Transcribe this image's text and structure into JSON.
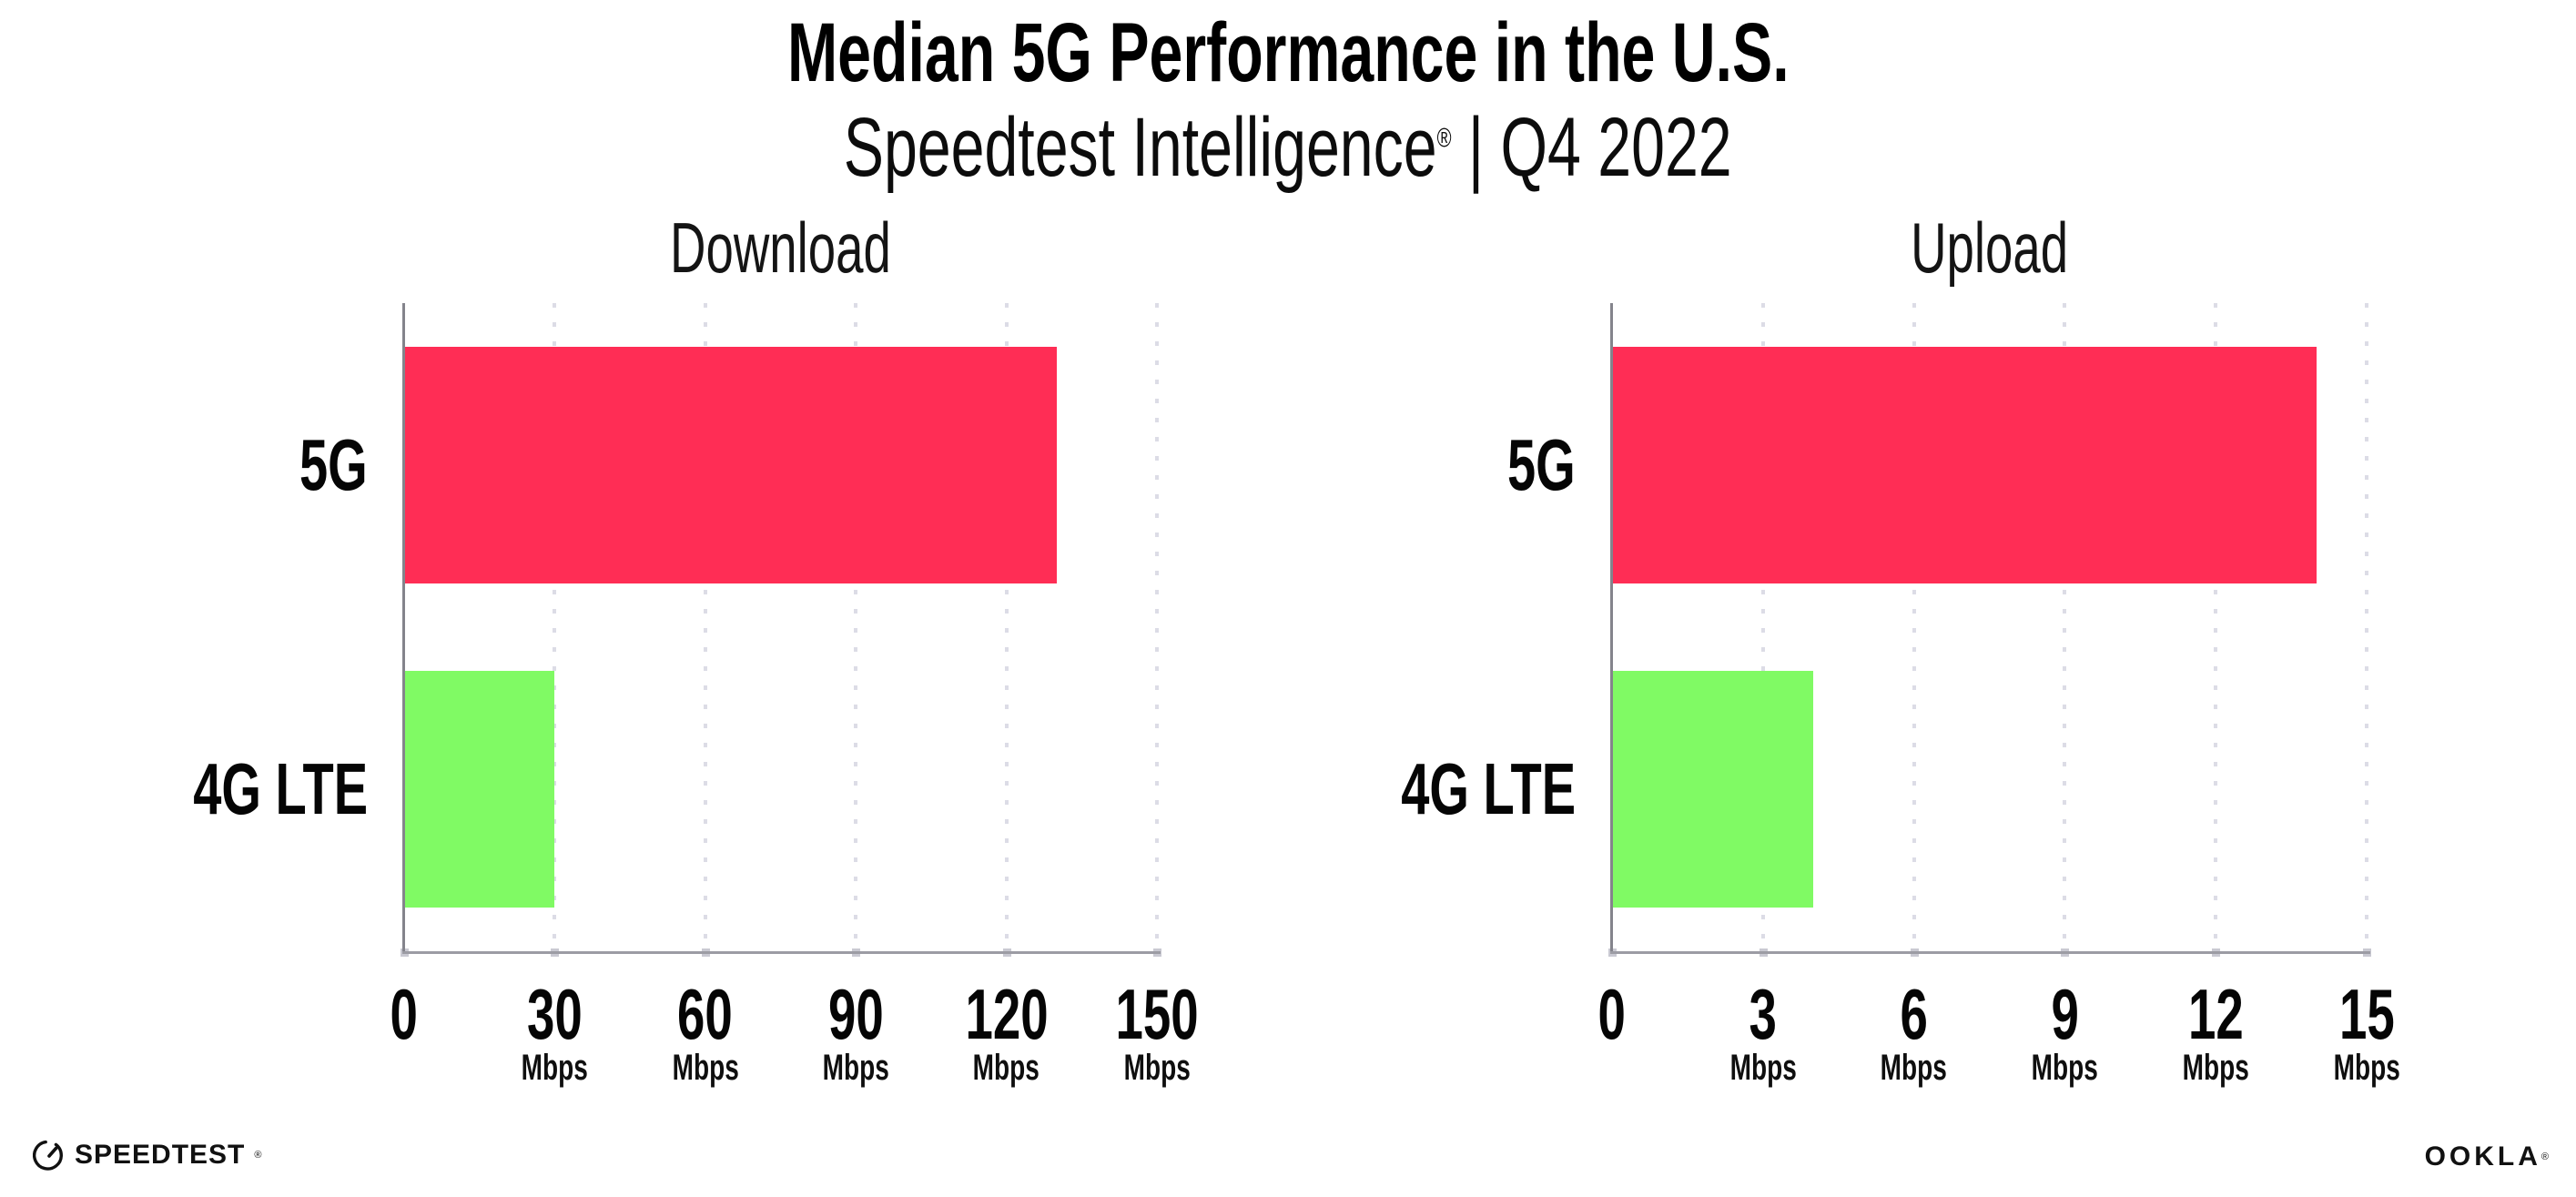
{
  "header": {
    "title": "Median 5G Performance in the U.S.",
    "subtitle": {
      "brand": "Speedtest Intelligence",
      "registered_mark": "®",
      "suffix": " | Q4 2022"
    }
  },
  "chart_data": [
    {
      "type": "bar",
      "orientation": "horizontal",
      "title": "Download",
      "categories": [
        "5G",
        "4G LTE"
      ],
      "values": [
        130,
        30
      ],
      "value_unit": "Mbps",
      "series_colors": {
        "5G": "#FF2D55",
        "4G LTE": "#80FA64"
      },
      "xlim": [
        0,
        150
      ],
      "xticks": [
        0,
        30,
        60,
        90,
        120,
        150
      ],
      "xtick_unit_label": "Mbps",
      "xtick_unit_on_zero": false,
      "grid": "vertical-dotted",
      "legend": "none"
    },
    {
      "type": "bar",
      "orientation": "horizontal",
      "title": "Upload",
      "categories": [
        "5G",
        "4G LTE"
      ],
      "values": [
        14,
        4
      ],
      "value_unit": "Mbps",
      "series_colors": {
        "5G": "#FF2D55",
        "4G LTE": "#80FA64"
      },
      "xlim": [
        0,
        15
      ],
      "xticks": [
        0,
        3,
        6,
        9,
        12,
        15
      ],
      "xtick_unit_label": "Mbps",
      "xtick_unit_on_zero": false,
      "grid": "vertical-dotted",
      "legend": "none"
    }
  ],
  "colors": {
    "bar_5g": "#FF2D55",
    "bar_4g_lte": "#80FA64",
    "gridline": "#dcdce6",
    "x_axis_line": "#9c9ca4",
    "y_axis_line": "#84848c",
    "text": "#0a0a0a"
  },
  "footer": {
    "speedtest": {
      "label": "SPEEDTEST",
      "mark": "®"
    },
    "ookla": {
      "label": "OOKLA",
      "mark": "®"
    }
  }
}
